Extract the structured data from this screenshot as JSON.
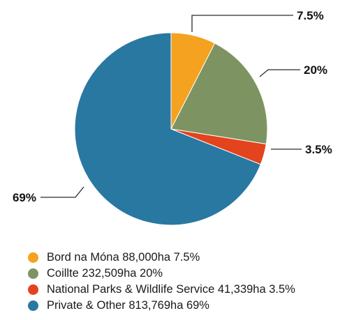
{
  "chart_data": {
    "type": "pie",
    "slices": [
      {
        "label": "7.5%",
        "value": 7.5,
        "color": "#f4a21f",
        "legend": "Bord na Móna 88,000ha 7.5%"
      },
      {
        "label": "20%",
        "value": 20,
        "color": "#7d9462",
        "legend": "Coillte 232,509ha 20%"
      },
      {
        "label": "3.5%",
        "value": 3.5,
        "color": "#e3431d",
        "legend": "National Parks & Wildlife Service 41,339ha 3.5%"
      },
      {
        "label": "69%",
        "value": 69,
        "color": "#2878a2",
        "legend": "Private & Other 813,769ha 69%"
      }
    ],
    "legend_placement": "bottom"
  }
}
